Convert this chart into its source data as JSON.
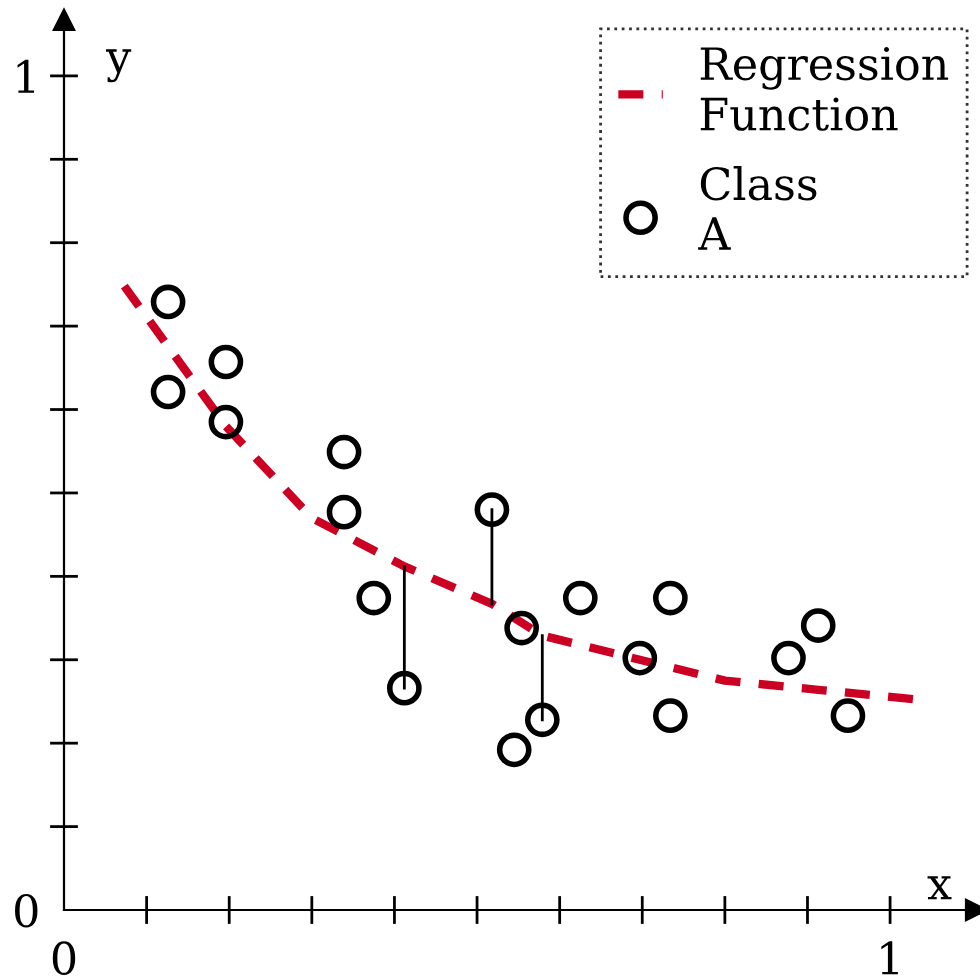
{
  "chart_data": {
    "type": "scatter",
    "xlabel": "x",
    "ylabel": "y",
    "xlim": [
      0,
      1.104
    ],
    "ylim": [
      0,
      1.067
    ],
    "xticks": [
      {
        "value": 0,
        "label": "0"
      },
      {
        "value": 0.1,
        "label": null
      },
      {
        "value": 0.2,
        "label": null
      },
      {
        "value": 0.3,
        "label": null
      },
      {
        "value": 0.4,
        "label": null
      },
      {
        "value": 0.5,
        "label": null
      },
      {
        "value": 0.6,
        "label": null
      },
      {
        "value": 0.7,
        "label": null
      },
      {
        "value": 0.8,
        "label": null
      },
      {
        "value": 0.9,
        "label": null
      },
      {
        "value": 1,
        "label": "1"
      }
    ],
    "yticks": [
      {
        "value": 0,
        "label": "0"
      },
      {
        "value": 0.1,
        "label": null
      },
      {
        "value": 0.2,
        "label": null
      },
      {
        "value": 0.3,
        "label": null
      },
      {
        "value": 0.4,
        "label": null
      },
      {
        "value": 0.5,
        "label": null
      },
      {
        "value": 0.6,
        "label": null
      },
      {
        "value": 0.7,
        "label": null
      },
      {
        "value": 0.8,
        "label": null
      },
      {
        "value": 0.9,
        "label": null
      },
      {
        "value": 1,
        "label": "1"
      }
    ],
    "grid": false,
    "legend": "top right",
    "series": [
      {
        "type": "line",
        "name": "Regression Function",
        "color": "#cc0022",
        "line_style": "dashed",
        "marker": "none",
        "x": [
          0.073,
          0.196,
          0.3,
          0.412,
          0.518,
          0.579,
          0.697,
          0.8,
          0.913,
          1.036
        ],
        "values": [
          0.748,
          0.58,
          0.47,
          0.412,
          0.367,
          0.329,
          0.3,
          0.275,
          0.264,
          0.252
        ]
      },
      {
        "type": "line",
        "color": "#000000",
        "line_style": "solid",
        "marker": "none",
        "x": [
          0.412,
          0.412,
          null,
          0.518,
          0.518,
          null,
          0.579,
          0.579
        ],
        "values": [
          0.266,
          0.412,
          null,
          0.48,
          0.367,
          null,
          0.228,
          0.329
        ]
      },
      {
        "name": "Class A",
        "color": "#000000",
        "marker": "circle",
        "x": [
          0.126,
          0.126,
          0.196,
          0.196,
          0.339,
          0.339,
          0.375,
          0.412,
          0.518,
          0.545,
          0.554,
          0.579,
          0.625,
          0.697,
          0.734,
          0.734,
          0.877,
          0.913,
          0.949
        ],
        "values": [
          0.729,
          0.621,
          0.657,
          0.585,
          0.549,
          0.477,
          0.374,
          0.266,
          0.48,
          0.192,
          0.338,
          0.228,
          0.374,
          0.302,
          0.374,
          0.233,
          0.302,
          0.341,
          0.233
        ]
      }
    ]
  }
}
